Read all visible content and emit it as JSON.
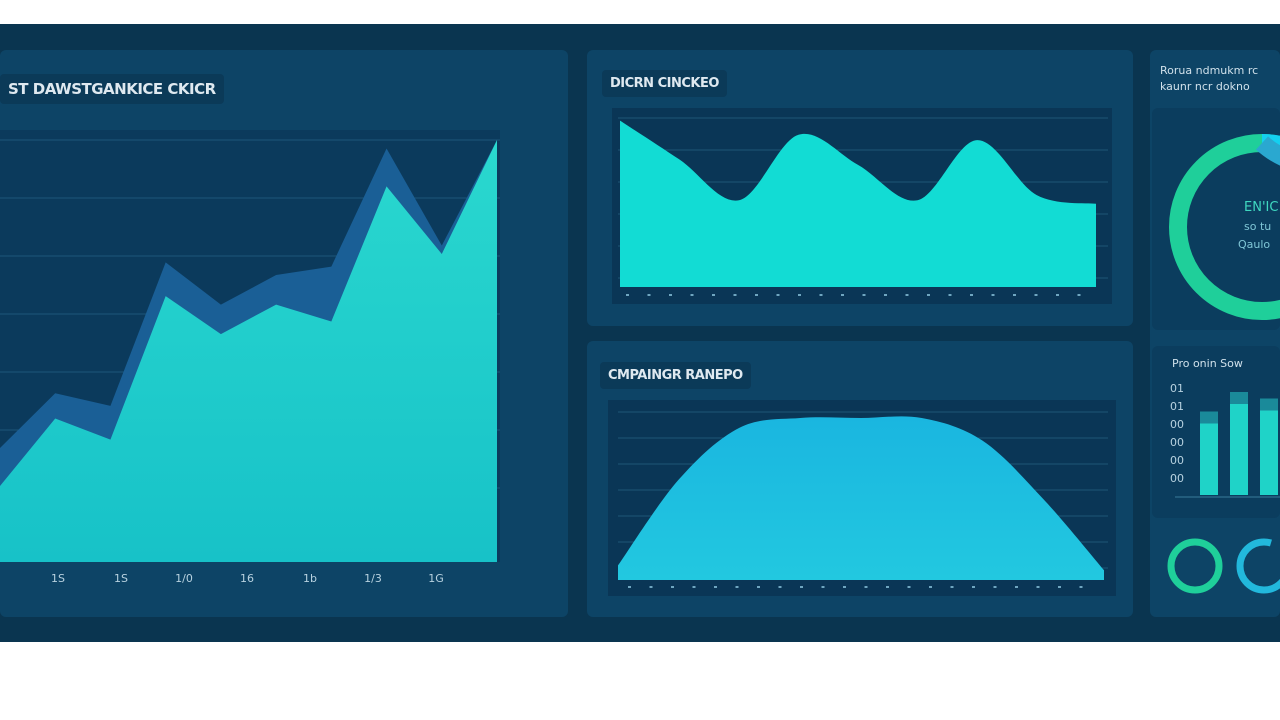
{
  "main_panel": {
    "title": "ST DAWSTGANKICE CKICR",
    "x_ticks": [
      "1S",
      "1S",
      "1/0",
      "16",
      "1b",
      "1/3",
      "1G"
    ]
  },
  "top_panel": {
    "title": "DICRN CINCKEO"
  },
  "bottom_panel": {
    "title": "CMPAINGR RANEPO"
  },
  "side_panel": {
    "title_line1": "Rorua ndmukm rc",
    "title_line2": "kaunr ncr dokno",
    "donut_text": [
      "EN'IC",
      "so tu",
      "Qaulo"
    ],
    "bars_title": "Pro onin Sow",
    "bar_y_ticks": [
      "01",
      "01",
      "00",
      "00",
      "00",
      "00"
    ]
  },
  "colors": {
    "teal": "#1fd3c8",
    "back_area": "#1a5f96",
    "cyan": "#22b8dc",
    "green": "#1fcf9a"
  },
  "chart_data": [
    {
      "type": "area",
      "series": [
        {
          "values": [
            27,
            40,
            37,
            71,
            61,
            68,
            70,
            98,
            75,
            100
          ]
        },
        {
          "values": [
            18,
            34,
            29,
            63,
            54,
            61,
            57,
            89,
            73,
            100
          ]
        }
      ],
      "x_ticks": [
        "1S",
        "1S",
        "1/0",
        "16",
        "1b",
        "1/3",
        "1G"
      ],
      "grid": true
    },
    {
      "type": "area",
      "series": [
        {
          "values": [
            94,
            72,
            49,
            86,
            69,
            49,
            83,
            52,
            47
          ]
        }
      ],
      "grid": true
    },
    {
      "type": "area",
      "series": [
        {
          "values": [
            9,
            62,
            94,
            100,
            100,
            100,
            86,
            50,
            6
          ]
        }
      ],
      "grid": true
    },
    {
      "type": "pie",
      "values": [
        85,
        15
      ]
    },
    {
      "type": "bar",
      "values": [
        55,
        70,
        65
      ]
    }
  ]
}
